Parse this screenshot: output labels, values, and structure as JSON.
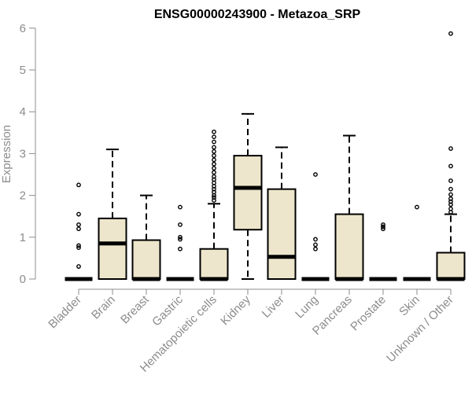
{
  "chart_data": {
    "type": "boxplot",
    "title": "ENSG00000243900 - Metazoa_SRP",
    "ylabel": "Expression",
    "xlabel": "",
    "ylim": [
      0,
      6
    ],
    "yticks": [
      "0",
      "1",
      "2",
      "3",
      "4",
      "5",
      "6"
    ],
    "box_fill": "#ede6cc",
    "categories": [
      "Bladder",
      "Brain",
      "Breast",
      "Gastric",
      "Hematopoietic cells",
      "Kidney",
      "Liver",
      "Lung",
      "Pancreas",
      "Prostate",
      "Skin",
      "Unknown / Other"
    ],
    "boxes": [
      {
        "q1": 0,
        "median": 0,
        "q3": 0,
        "whisker_low": 0,
        "whisker_high": 0,
        "outliers": [
          2.25,
          1.55,
          1.3,
          1.2,
          0.8,
          0.75,
          0.3
        ]
      },
      {
        "q1": 0,
        "median": 0.85,
        "q3": 1.45,
        "whisker_low": 0,
        "whisker_high": 3.1,
        "outliers": []
      },
      {
        "q1": 0,
        "median": 0,
        "q3": 0.93,
        "whisker_low": 0,
        "whisker_high": 2.0,
        "outliers": []
      },
      {
        "q1": 0,
        "median": 0,
        "q3": 0,
        "whisker_low": 0,
        "whisker_high": 0,
        "outliers": [
          1.72,
          1.3,
          1.0,
          0.95,
          0.72
        ]
      },
      {
        "q1": 0,
        "median": 0,
        "q3": 0.72,
        "whisker_low": 0,
        "whisker_high": 1.8,
        "outliers": [
          3.52,
          3.4,
          3.28,
          3.15,
          3.05,
          2.95,
          2.85,
          2.75,
          2.65,
          2.55,
          2.45,
          2.38,
          2.3,
          2.22,
          2.15,
          2.08,
          2.0,
          1.95,
          1.88
        ]
      },
      {
        "q1": 1.18,
        "median": 2.18,
        "q3": 2.95,
        "whisker_low": 0,
        "whisker_high": 3.95,
        "outliers": []
      },
      {
        "q1": 0,
        "median": 0.53,
        "q3": 2.15,
        "whisker_low": 0,
        "whisker_high": 3.15,
        "outliers": []
      },
      {
        "q1": 0,
        "median": 0,
        "q3": 0,
        "whisker_low": 0,
        "whisker_high": 0,
        "outliers": [
          2.5,
          0.95,
          0.82,
          0.72
        ]
      },
      {
        "q1": 0,
        "median": 0,
        "q3": 1.55,
        "whisker_low": 0,
        "whisker_high": 3.43,
        "outliers": []
      },
      {
        "q1": 0,
        "median": 0,
        "q3": 0,
        "whisker_low": 0,
        "whisker_high": 0,
        "outliers": [
          1.3,
          1.25,
          1.2
        ]
      },
      {
        "q1": 0,
        "median": 0,
        "q3": 0,
        "whisker_low": 0,
        "whisker_high": 0,
        "outliers": [
          1.72
        ]
      },
      {
        "q1": 0,
        "median": 0,
        "q3": 0.63,
        "whisker_low": 0,
        "whisker_high": 1.55,
        "outliers": [
          5.87,
          3.12,
          2.7,
          2.35,
          2.15,
          2.02,
          1.92,
          1.85,
          1.78,
          1.68,
          1.6
        ]
      }
    ]
  }
}
